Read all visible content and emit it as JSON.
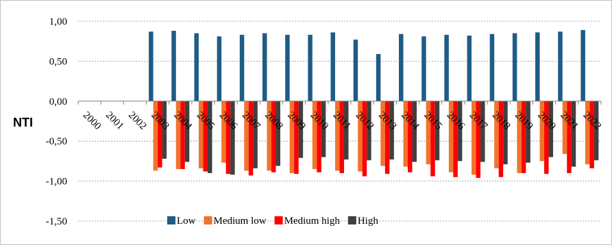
{
  "chart_data": {
    "type": "bar",
    "title": "",
    "xlabel": "",
    "ylabel": "NTI",
    "ylim": [
      -1.5,
      1.0
    ],
    "yticks": [
      1.0,
      0.5,
      0.0,
      -0.5,
      -1.0,
      -1.5
    ],
    "ytick_labels": [
      "1,00",
      "0,50",
      "0,00",
      "-0,50",
      "-1,00",
      "-1,50"
    ],
    "grid": true,
    "legend_position": "bottom",
    "categories": [
      "2000",
      "2001",
      "2002",
      "2003",
      "2004",
      "2005",
      "2006",
      "2007",
      "2008",
      "2009",
      "2010",
      "2011",
      "2012",
      "2013",
      "2014",
      "2015",
      "2016",
      "2017",
      "2018",
      "2019",
      "2020",
      "2021",
      "2022"
    ],
    "series": [
      {
        "name": "Low",
        "color": "#1F5C85",
        "values": [
          null,
          null,
          null,
          0.87,
          0.88,
          0.85,
          0.81,
          0.83,
          0.85,
          0.83,
          0.83,
          0.86,
          0.77,
          0.59,
          0.84,
          0.81,
          0.83,
          0.82,
          0.84,
          0.85,
          0.86,
          0.87,
          0.89
        ]
      },
      {
        "name": "Medium low",
        "color": "#F0742C",
        "values": [
          null,
          null,
          null,
          -0.87,
          -0.85,
          -0.84,
          -0.77,
          -0.87,
          -0.87,
          -0.9,
          -0.85,
          -0.87,
          -0.88,
          -0.81,
          -0.82,
          -0.79,
          -0.89,
          -0.92,
          -0.84,
          -0.9,
          -0.75,
          -0.66,
          -0.79
        ]
      },
      {
        "name": "Medium high",
        "color": "#FF0000",
        "values": [
          null,
          null,
          null,
          -0.83,
          -0.85,
          -0.88,
          -0.91,
          -0.93,
          -0.89,
          -0.91,
          -0.89,
          -0.9,
          -0.94,
          -0.91,
          -0.89,
          -0.94,
          -0.95,
          -0.96,
          -0.95,
          -0.9,
          -0.91,
          -0.9,
          -0.84
        ]
      },
      {
        "name": "High",
        "color": "#404040",
        "values": [
          null,
          null,
          null,
          -0.72,
          -0.76,
          -0.9,
          -0.92,
          -0.84,
          -0.81,
          -0.71,
          -0.7,
          -0.73,
          -0.74,
          -0.73,
          -0.76,
          -0.74,
          -0.75,
          -0.76,
          -0.79,
          -0.77,
          -0.7,
          -0.82,
          -0.74
        ]
      }
    ]
  }
}
